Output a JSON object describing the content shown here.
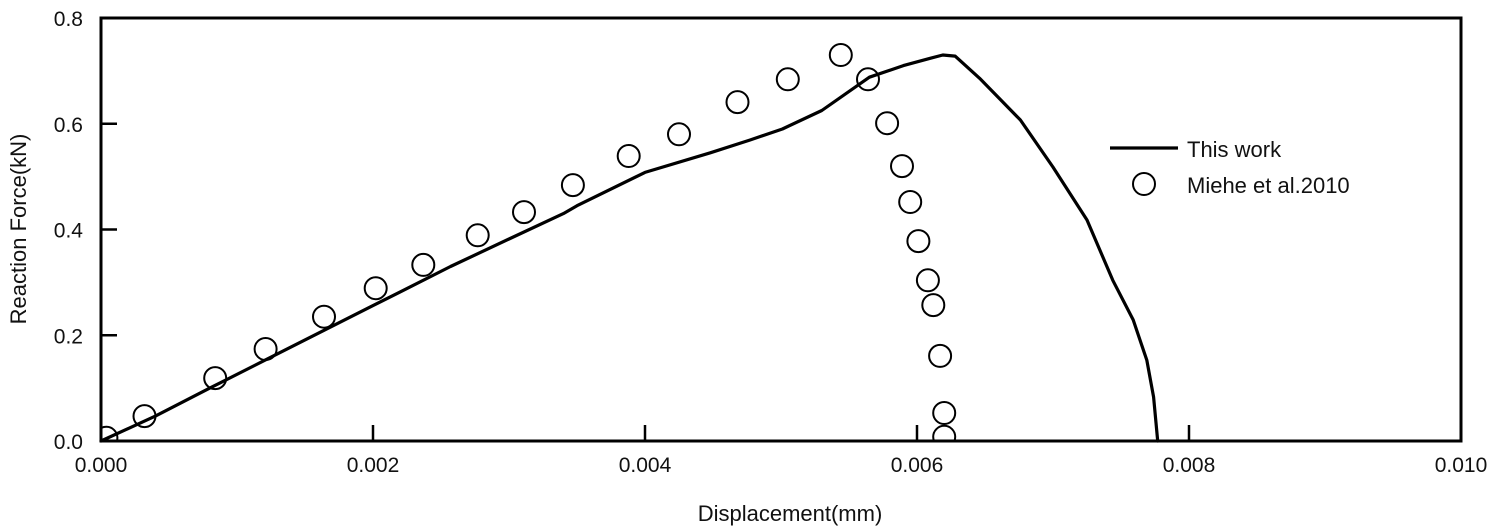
{
  "chart_data": {
    "type": "line",
    "title": "",
    "xlabel": "Displacement(mm)",
    "ylabel": "Reaction Force(kN)",
    "xlim": [
      0.0,
      0.01
    ],
    "ylim": [
      0.0,
      0.8
    ],
    "xticks": [
      0.0,
      0.002,
      0.004,
      0.006,
      0.008,
      0.01
    ],
    "xtick_labels": [
      "0.000",
      "0.002",
      "0.004",
      "0.006",
      "0.008",
      "0.010"
    ],
    "yticks": [
      0.0,
      0.2,
      0.4,
      0.6,
      0.8
    ],
    "ytick_labels": [
      "0.0",
      "0.2",
      "0.4",
      "0.6",
      "0.8"
    ],
    "grid": false,
    "legend_position": "upper right (inside)",
    "series": [
      {
        "name": "This work",
        "style": "line",
        "color": "#000000",
        "x": [
          0.0,
          0.0004,
          0.0008,
          0.0012,
          0.0016,
          0.002,
          0.0022,
          0.00257,
          0.003,
          0.0034,
          0.0035,
          0.004,
          0.00448,
          0.00477,
          0.00501,
          0.0053,
          0.00565,
          0.0059,
          0.0061,
          0.00619,
          0.00628,
          0.00646,
          0.00676,
          0.007,
          0.00725,
          0.00744,
          0.00759,
          0.00769,
          0.00774,
          0.00777
        ],
        "y": [
          0.0,
          0.047,
          0.1,
          0.152,
          0.204,
          0.256,
          0.282,
          0.33,
          0.382,
          0.43,
          0.445,
          0.508,
          0.545,
          0.569,
          0.59,
          0.625,
          0.688,
          0.71,
          0.724,
          0.73,
          0.728,
          0.686,
          0.607,
          0.518,
          0.418,
          0.304,
          0.229,
          0.153,
          0.083,
          0.0
        ]
      },
      {
        "name": "Miehe et al.2010",
        "style": "open-circle",
        "color": "#000000",
        "x": [
          4e-05,
          0.00032,
          0.00084,
          0.00121,
          0.00164,
          0.00202,
          0.00237,
          0.00277,
          0.00311,
          0.00347,
          0.00388,
          0.00425,
          0.00468,
          0.00505,
          0.00544,
          0.00564,
          0.00578,
          0.00589,
          0.00595,
          0.00601,
          0.00608,
          0.00612,
          0.00617,
          0.0062,
          0.0062
        ],
        "y": [
          0.006,
          0.047,
          0.119,
          0.174,
          0.235,
          0.289,
          0.333,
          0.389,
          0.433,
          0.484,
          0.539,
          0.58,
          0.641,
          0.684,
          0.73,
          0.684,
          0.601,
          0.52,
          0.452,
          0.378,
          0.304,
          0.257,
          0.161,
          0.053,
          0.008
        ]
      }
    ]
  },
  "legend": {
    "items": [
      {
        "label": "This work",
        "symbol": "line"
      },
      {
        "label": "Miehe et al.2010",
        "symbol": "open-circle"
      }
    ]
  }
}
